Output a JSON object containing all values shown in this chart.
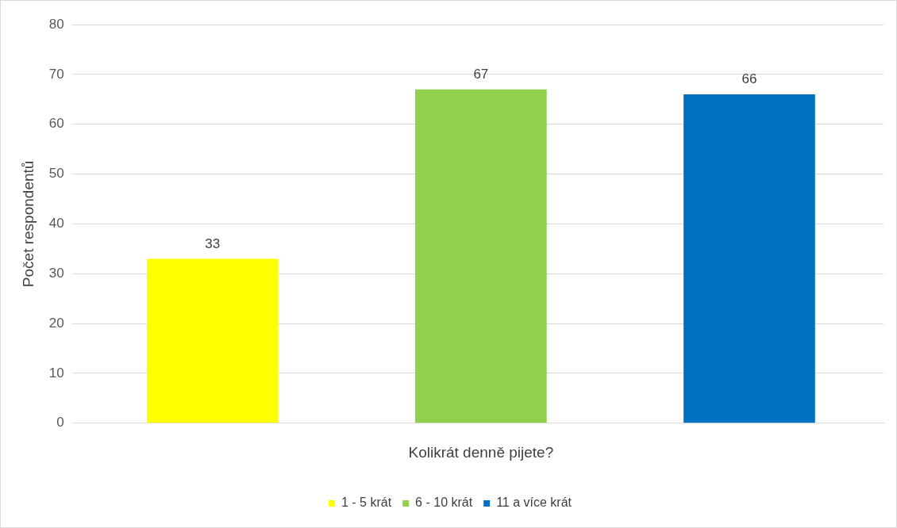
{
  "chart_data": {
    "type": "bar",
    "xlabel": "Kolikrát denně pijete?",
    "ylabel": "Počet respondentů",
    "categories": [
      null
    ],
    "series": [
      {
        "name": "1 - 5 krát",
        "color": "#ffff00",
        "values": [
          33
        ]
      },
      {
        "name": "6 - 10 krát",
        "color": "#92d050",
        "values": [
          67
        ]
      },
      {
        "name": "11 a více krát",
        "color": "#0070c0",
        "values": [
          66
        ]
      }
    ],
    "ylim": [
      0,
      80
    ],
    "yticks": [
      0,
      10,
      20,
      30,
      40,
      50,
      60,
      70,
      80
    ],
    "grid": "y",
    "legend": "bottom",
    "data_labels": true
  }
}
